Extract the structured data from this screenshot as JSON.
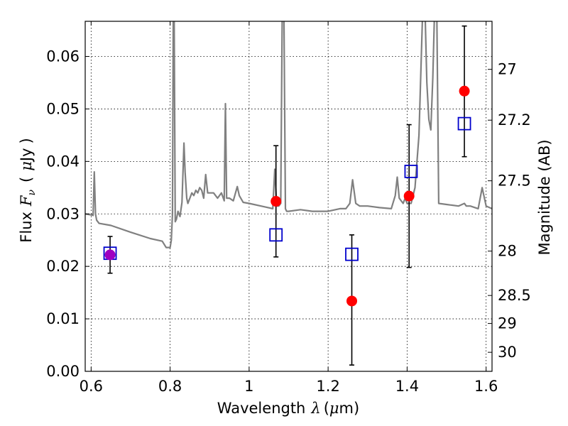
{
  "chart_data": {
    "type": "scatter",
    "xlabel": "Wavelength",
    "xlabel_symbol": "λ",
    "xlabel_unit_open": "(",
    "xlabel_unit_mu": "μ",
    "xlabel_unit_rest": "m)",
    "ylabel_left_text": "Flux",
    "ylabel_left_symbol": "F",
    "ylabel_left_subscript": "ν",
    "ylabel_left_unit_open": "(",
    "ylabel_left_unit_mu": "μ",
    "ylabel_left_unit_rest": "Jy",
    "ylabel_left_unit_close": ")",
    "ylabel_right": "Magnitude (AB)",
    "xlim": [
      0.585,
      1.615
    ],
    "ylim": [
      0.0,
      0.0667
    ],
    "xticks": [
      0.6,
      0.8,
      1.0,
      1.2,
      1.4,
      1.6
    ],
    "xtick_labels": [
      "0.6",
      "0.8",
      "1",
      "1.2",
      "1.4",
      "1.6"
    ],
    "yticks": [
      0.0,
      0.01,
      0.02,
      0.03,
      0.04,
      0.05,
      0.06
    ],
    "ytick_labels": [
      "0.00",
      "0.01",
      "0.02",
      "0.03",
      "0.04",
      "0.05",
      "0.06"
    ],
    "right_ticks": [
      {
        "mag": 27,
        "label": "27"
      },
      {
        "mag": 27.2,
        "label": "27.2"
      },
      {
        "mag": 27.5,
        "label": "27.5"
      },
      {
        "mag": 28,
        "label": "28"
      },
      {
        "mag": 28.5,
        "label": "28.5"
      },
      {
        "mag": 29,
        "label": "29"
      },
      {
        "mag": 30,
        "label": "30"
      }
    ],
    "grid": true,
    "colors": {
      "spectrum": "#808080",
      "observed": "#ff0000",
      "observed_first": "#a000c0",
      "model": "#0000cc",
      "errorbar": "#000000"
    },
    "series": [
      {
        "name": "model spectrum",
        "kind": "line",
        "x": [
          0.585,
          0.6,
          0.605,
          0.608,
          0.611,
          0.614,
          0.62,
          0.65,
          0.7,
          0.75,
          0.78,
          0.79,
          0.8,
          0.803,
          0.806,
          0.808,
          0.81,
          0.813,
          0.816,
          0.82,
          0.825,
          0.83,
          0.835,
          0.838,
          0.842,
          0.845,
          0.85,
          0.855,
          0.86,
          0.865,
          0.87,
          0.875,
          0.88,
          0.885,
          0.89,
          0.895,
          0.9,
          0.91,
          0.92,
          0.93,
          0.937,
          0.94,
          0.943,
          0.95,
          0.96,
          0.97,
          0.975,
          0.985,
          1.0,
          1.03,
          1.06,
          1.065,
          1.07,
          1.075,
          1.08,
          1.084,
          1.088,
          1.092,
          1.095,
          1.1,
          1.13,
          1.16,
          1.2,
          1.23,
          1.245,
          1.255,
          1.262,
          1.27,
          1.28,
          1.3,
          1.33,
          1.36,
          1.37,
          1.375,
          1.38,
          1.39,
          1.395,
          1.4,
          1.41,
          1.42,
          1.43,
          1.44,
          1.445,
          1.45,
          1.455,
          1.46,
          1.465,
          1.47,
          1.475,
          1.48,
          1.5,
          1.53,
          1.545,
          1.55,
          1.56,
          1.58,
          1.59,
          1.6,
          1.615
        ],
        "y": [
          0.03,
          0.0298,
          0.0297,
          0.038,
          0.03,
          0.0288,
          0.0282,
          0.0278,
          0.0265,
          0.0253,
          0.0248,
          0.0236,
          0.0236,
          0.025,
          0.03,
          0.07,
          0.07,
          0.0285,
          0.029,
          0.0305,
          0.0295,
          0.0322,
          0.0435,
          0.038,
          0.033,
          0.032,
          0.033,
          0.034,
          0.0335,
          0.0345,
          0.034,
          0.035,
          0.0345,
          0.033,
          0.0375,
          0.034,
          0.034,
          0.034,
          0.033,
          0.034,
          0.0325,
          0.051,
          0.033,
          0.033,
          0.0325,
          0.0352,
          0.0335,
          0.0322,
          0.032,
          0.0315,
          0.031,
          0.0385,
          0.0315,
          0.0315,
          0.032,
          0.07,
          0.07,
          0.031,
          0.0305,
          0.0305,
          0.0308,
          0.0305,
          0.0305,
          0.031,
          0.031,
          0.032,
          0.0365,
          0.032,
          0.0315,
          0.0315,
          0.0312,
          0.031,
          0.0335,
          0.037,
          0.033,
          0.032,
          0.033,
          0.032,
          0.032,
          0.035,
          0.045,
          0.07,
          0.07,
          0.055,
          0.048,
          0.046,
          0.056,
          0.07,
          0.07,
          0.032,
          0.0318,
          0.0315,
          0.032,
          0.0315,
          0.0315,
          0.031,
          0.035,
          0.0315,
          0.031
        ]
      },
      {
        "name": "observed photometry",
        "kind": "errorbar",
        "x": [
          0.648,
          1.068,
          1.26,
          1.405,
          1.545
        ],
        "y": [
          0.0222,
          0.0324,
          0.0134,
          0.0334,
          0.0534
        ],
        "yerr_low": [
          0.0035,
          0.0106,
          0.0122,
          0.0136,
          0.0125
        ],
        "yerr_high": [
          0.0035,
          0.0106,
          0.0126,
          0.0136,
          0.0124
        ]
      },
      {
        "name": "model photometry",
        "kind": "square",
        "x": [
          0.648,
          1.068,
          1.26,
          1.41,
          1.545
        ],
        "y": [
          0.0225,
          0.026,
          0.0223,
          0.0381,
          0.0472
        ]
      }
    ]
  }
}
